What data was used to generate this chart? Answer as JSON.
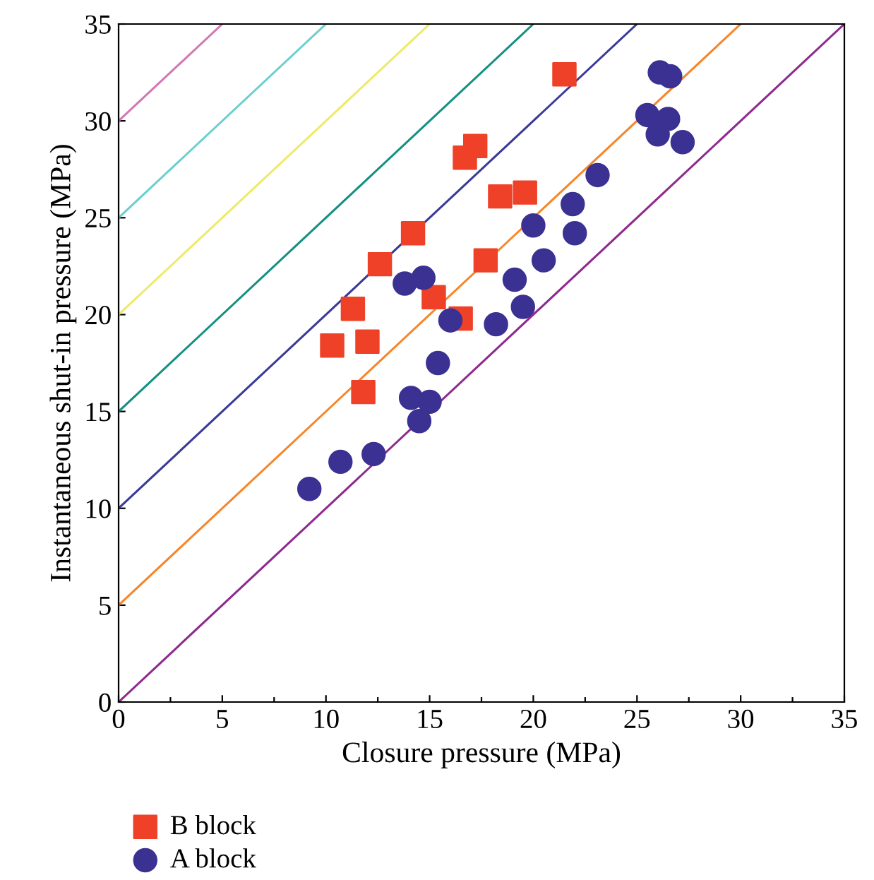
{
  "chart_data": {
    "type": "scatter",
    "xlabel": "Closure pressure (MPa)",
    "ylabel": "Instantaneous shut-in pressure (MPa)",
    "xlim": [
      0,
      35
    ],
    "ylim": [
      0,
      35
    ],
    "xticks": [
      0,
      {
        "value": 2.5,
        "label": null
      },
      5,
      {
        "value": 7.5,
        "label": null
      },
      10,
      {
        "value": 12.5,
        "label": null
      },
      15,
      {
        "value": 17.5,
        "label": null
      },
      20,
      {
        "value": 22.5,
        "label": null
      },
      25,
      {
        "value": 27.5,
        "label": null
      },
      30,
      {
        "value": 32.5,
        "label": null
      },
      35
    ],
    "yticks": [
      0,
      5,
      10,
      15,
      20,
      25,
      30,
      35
    ],
    "grid": false,
    "legend": "bottom left",
    "series": [
      {
        "type": "line",
        "color": "#8e2a8e",
        "x": [
          0,
          35
        ],
        "values": [
          0,
          35
        ],
        "marker": "none"
      },
      {
        "type": "line",
        "color": "#f7862a",
        "x": [
          0,
          30
        ],
        "values": [
          5,
          35
        ],
        "marker": "none"
      },
      {
        "type": "line",
        "color": "#3b3a98",
        "x": [
          0,
          25
        ],
        "values": [
          10,
          35
        ],
        "marker": "none"
      },
      {
        "type": "line",
        "color": "#149082",
        "x": [
          0,
          20
        ],
        "values": [
          15,
          35
        ],
        "marker": "none"
      },
      {
        "type": "line",
        "color": "#eeea6a",
        "x": [
          0,
          15
        ],
        "values": [
          20,
          35
        ],
        "marker": "none"
      },
      {
        "type": "line",
        "color": "#6ccfcf",
        "x": [
          0,
          10
        ],
        "values": [
          25,
          35
        ],
        "marker": "none"
      },
      {
        "type": "line",
        "color": "#d27ab4",
        "x": [
          0,
          5
        ],
        "values": [
          30,
          35
        ],
        "marker": "none"
      },
      {
        "name": "B block",
        "color": "#ee4127",
        "marker": "square",
        "x": [
          21.5,
          17.2,
          16.7,
          18.4,
          19.6,
          14.2,
          12.6,
          17.7,
          11.3,
          15.2,
          16.5,
          10.3,
          12.0,
          11.8
        ],
        "values": [
          32.4,
          28.7,
          28.1,
          26.1,
          26.3,
          24.2,
          22.6,
          22.8,
          20.3,
          20.9,
          19.8,
          18.4,
          18.6,
          16.0
        ]
      },
      {
        "name": "A block",
        "color": "#3a3192",
        "marker": "circle",
        "x": [
          9.2,
          10.7,
          12.3,
          14.5,
          14.1,
          15.0,
          15.4,
          16.0,
          13.8,
          14.7,
          18.2,
          19.5,
          19.1,
          20.5,
          20.0,
          22.0,
          21.9,
          23.1,
          25.5,
          26.5,
          26.0,
          27.2,
          26.1,
          26.6
        ],
        "values": [
          11.0,
          12.4,
          12.8,
          14.5,
          15.7,
          15.5,
          17.5,
          19.7,
          21.6,
          21.9,
          19.5,
          20.4,
          21.8,
          22.8,
          24.6,
          24.2,
          25.7,
          27.2,
          30.3,
          30.1,
          29.3,
          28.9,
          32.5,
          32.3
        ]
      }
    ]
  }
}
